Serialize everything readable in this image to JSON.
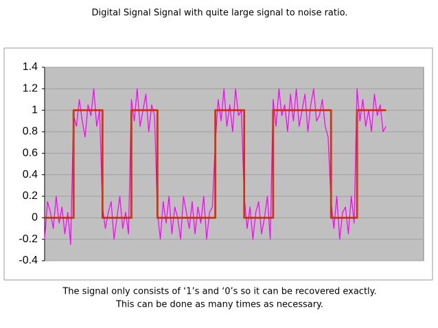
{
  "chart_data": {
    "type": "line",
    "title": "Digital Signal Signal with quite large signal to noise ratio.",
    "notes": [
      "The signal only consists of ‘1’s and ‘0’s so it can be recovered exactly.",
      "This can be done as many times as necessary."
    ],
    "xlim": [
      0,
      131
    ],
    "ylim": [
      -0.4,
      1.4
    ],
    "yticks": [
      -0.4,
      -0.2,
      0,
      0.2,
      0.4,
      0.6,
      0.8,
      1,
      1.2,
      1.4
    ],
    "grid": true,
    "plot_background": "#c0c0c0",
    "series": [
      {
        "color": "#ff00ff",
        "width": 1.3,
        "x": [
          0,
          1,
          2,
          3,
          4,
          5,
          6,
          7,
          8,
          9,
          10,
          11,
          12,
          13,
          14,
          15,
          16,
          17,
          18,
          19,
          20,
          21,
          22,
          23,
          24,
          25,
          26,
          27,
          28,
          29,
          30,
          31,
          32,
          33,
          34,
          35,
          36,
          37,
          38,
          39,
          40,
          41,
          42,
          43,
          44,
          45,
          46,
          47,
          48,
          49,
          50,
          51,
          52,
          53,
          54,
          55,
          56,
          57,
          58,
          59,
          60,
          61,
          62,
          63,
          64,
          65,
          66,
          67,
          68,
          69,
          70,
          71,
          72,
          73,
          74,
          75,
          76,
          77,
          78,
          79,
          80,
          81,
          82,
          83,
          84,
          85,
          86,
          87,
          88,
          89,
          90,
          91,
          92,
          93,
          94,
          95,
          96,
          97,
          98,
          99,
          100,
          101,
          102,
          103,
          104,
          105,
          106,
          107,
          108,
          109,
          110,
          111,
          112,
          113,
          114,
          115,
          116,
          117,
          118
        ],
        "values": [
          -0.2,
          0.15,
          0.05,
          -0.1,
          0.2,
          -0.05,
          0.1,
          -0.15,
          0.05,
          -0.25,
          0.95,
          0.85,
          1.1,
          0.9,
          0.75,
          1.05,
          0.95,
          1.2,
          0.85,
          1.0,
          0.1,
          -0.1,
          0.05,
          0.15,
          -0.2,
          0.0,
          0.2,
          -0.1,
          0.05,
          -0.15,
          1.1,
          0.9,
          1.2,
          0.85,
          1.0,
          1.15,
          0.8,
          1.05,
          0.95,
          0.05,
          -0.2,
          0.15,
          -0.05,
          0.2,
          -0.15,
          0.1,
          0.0,
          -0.2,
          0.2,
          0.05,
          -0.1,
          0.15,
          -0.15,
          0.1,
          -0.05,
          0.2,
          -0.2,
          0.05,
          0.1,
          0.7,
          1.1,
          0.9,
          1.2,
          0.85,
          1.05,
          0.8,
          1.2,
          0.95,
          1.0,
          0.2,
          -0.1,
          0.1,
          -0.2,
          0.05,
          0.15,
          -0.15,
          0.0,
          0.2,
          -0.2,
          1.1,
          0.85,
          1.2,
          0.95,
          1.05,
          0.8,
          1.15,
          0.9,
          1.2,
          0.85,
          1.0,
          1.15,
          0.8,
          1.05,
          1.2,
          0.9,
          0.95,
          1.1,
          0.85,
          0.75,
          0.15,
          -0.1,
          0.2,
          -0.2,
          0.05,
          0.1,
          -0.15,
          0.2,
          -0.05,
          1.2,
          0.9,
          1.1,
          0.85,
          1.0,
          0.8,
          1.15,
          0.95,
          1.05,
          0.8,
          0.85
        ]
      },
      {
        "color": "#000000",
        "width": 2.5,
        "x": [
          0,
          10,
          10,
          20,
          20,
          30,
          30,
          39,
          39,
          59,
          59,
          69,
          69,
          79,
          79,
          99,
          99,
          108,
          108,
          118
        ],
        "values": [
          0,
          0,
          1,
          1,
          0,
          0,
          1,
          1,
          0,
          0,
          1,
          1,
          0,
          0,
          1,
          1,
          0,
          0,
          1,
          1
        ]
      },
      {
        "color": "#ff3300",
        "width": 2,
        "x": [
          0,
          10,
          10,
          20,
          20,
          30,
          30,
          39,
          39,
          59,
          59,
          69,
          69,
          79,
          79,
          99,
          99,
          108,
          108,
          118
        ],
        "values": [
          0,
          0,
          1,
          1,
          0,
          0,
          1,
          1,
          0,
          0,
          1,
          1,
          0,
          0,
          1,
          1,
          0,
          0,
          1,
          1
        ]
      }
    ]
  }
}
